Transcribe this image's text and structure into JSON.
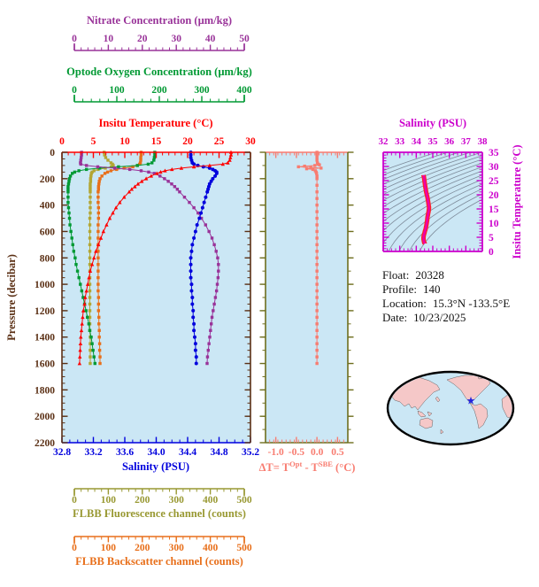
{
  "figure": {
    "background": "#ffffff",
    "info": {
      "rows": [
        {
          "label": "Float:",
          "value": "20328"
        },
        {
          "label": "Profile:",
          "value": "140"
        },
        {
          "label": "Location:",
          "value": "15.3°N  -133.5°E"
        },
        {
          "label": "Date:",
          "value": "10/23/2025"
        }
      ]
    }
  },
  "chart_data": {
    "type": "line",
    "description": "Profiling float data: six profiles vs pressure, optode-vs-SBE temperature difference panel, T-S diagram with density contours, float info and world map",
    "plot_bg": "#cbe7f5",
    "pressure_axis": {
      "title": "Pressure (decibar)",
      "lim": [
        0,
        2200
      ],
      "tick_vals": [
        0,
        200,
        400,
        600,
        800,
        1000,
        1200,
        1400,
        1600,
        1800,
        2000,
        2200
      ],
      "tick_labels": [
        "0",
        "200",
        "400",
        "600",
        "800",
        "1000",
        "1200",
        "1400",
        "1600",
        "1800",
        "2000",
        "2200"
      ],
      "minor": 50,
      "color": "#5b3015"
    },
    "axes": {
      "nitrate": {
        "title": "Nitrate Concentration (µm/kg)",
        "lim": [
          0,
          50
        ],
        "tick_vals": [
          0,
          10,
          20,
          30,
          40,
          50
        ],
        "tick_labels": [
          "0",
          "10",
          "20",
          "30",
          "40",
          "50"
        ],
        "minor": 2,
        "color": "#993399"
      },
      "oxygen": {
        "title": "Optode Oxygen Concentration (µm/kg)",
        "lim": [
          0,
          400
        ],
        "tick_vals": [
          0,
          100,
          200,
          300,
          400
        ],
        "tick_labels": [
          "0",
          "100",
          "200",
          "300",
          "400"
        ],
        "minor": 20,
        "color": "#009933"
      },
      "temperature": {
        "title": "Insitu Temperature (°C)",
        "lim": [
          0,
          30
        ],
        "tick_vals": [
          0,
          5,
          10,
          15,
          20,
          25,
          30
        ],
        "tick_labels": [
          "0",
          "5",
          "10",
          "15",
          "20",
          "25",
          "30"
        ],
        "minor": 1,
        "color": "#ff0000"
      },
      "salinity": {
        "title": "Salinity (PSU)",
        "lim": [
          32.8,
          35.2
        ],
        "tick_vals": [
          32.8,
          33.2,
          33.6,
          34.0,
          34.4,
          34.8,
          35.2
        ],
        "tick_labels": [
          "32.8",
          "33.2",
          "33.6",
          "34.0",
          "34.4",
          "34.8",
          "35.2"
        ],
        "minor": 0.1,
        "color": "#0000dd"
      },
      "fluorescence": {
        "title": "FLBB Fluorescence channel (counts)",
        "lim": [
          0,
          500
        ],
        "tick_vals": [
          0,
          100,
          200,
          300,
          400,
          500
        ],
        "tick_labels": [
          "0",
          "100",
          "200",
          "300",
          "400",
          "500"
        ],
        "minor": 20,
        "color": "#999933"
      },
      "backscatter": {
        "title": "FLBB Backscatter channel (counts)",
        "lim": [
          0,
          500
        ],
        "tick_vals": [
          0,
          100,
          200,
          300,
          400,
          500
        ],
        "tick_labels": [
          "0",
          "100",
          "200",
          "300",
          "400",
          "500"
        ],
        "minor": 20,
        "color": "#e86f1a"
      }
    },
    "series": {
      "temperature": {
        "units": "°C",
        "color": "#ff0000",
        "marker": "triangle",
        "p": [
          0,
          20,
          40,
          60,
          80,
          90,
          100,
          110,
          120,
          130,
          140,
          150,
          160,
          180,
          200,
          220,
          240,
          260,
          280,
          300,
          340,
          380,
          420,
          460,
          500,
          550,
          600,
          650,
          700,
          750,
          800,
          850,
          900,
          950,
          1000,
          1050,
          1100,
          1150,
          1200,
          1250,
          1300,
          1350,
          1400,
          1450,
          1500,
          1550,
          1600
        ],
        "v": [
          26.9,
          26.9,
          26.8,
          26.7,
          26.4,
          25.6,
          23.5,
          21.0,
          19.0,
          17.5,
          16.4,
          15.7,
          15.1,
          14.2,
          13.4,
          12.7,
          12.1,
          11.6,
          11.1,
          10.7,
          9.9,
          9.2,
          8.6,
          8.1,
          7.6,
          7.1,
          6.6,
          6.2,
          5.8,
          5.4,
          5.1,
          4.8,
          4.5,
          4.3,
          4.1,
          3.9,
          3.7,
          3.6,
          3.4,
          3.3,
          3.2,
          3.1,
          3.0,
          2.95,
          2.9,
          2.85,
          2.8
        ]
      },
      "salinity": {
        "units": "PSU",
        "color": "#0000dd",
        "marker": "circle",
        "p": [
          0,
          20,
          40,
          60,
          80,
          90,
          100,
          110,
          120,
          130,
          140,
          150,
          160,
          180,
          200,
          220,
          240,
          260,
          280,
          300,
          340,
          380,
          420,
          460,
          500,
          550,
          600,
          650,
          700,
          750,
          800,
          850,
          900,
          950,
          1000,
          1050,
          1100,
          1150,
          1200,
          1250,
          1300,
          1350,
          1400,
          1450,
          1500,
          1550,
          1600
        ],
        "v": [
          34.44,
          34.44,
          34.44,
          34.45,
          34.46,
          34.48,
          34.53,
          34.6,
          34.68,
          34.72,
          34.75,
          34.77,
          34.77,
          34.75,
          34.72,
          34.7,
          34.68,
          34.67,
          34.66,
          34.65,
          34.63,
          34.61,
          34.59,
          34.57,
          34.55,
          34.52,
          34.5,
          34.48,
          34.46,
          34.45,
          34.44,
          34.44,
          34.44,
          34.44,
          34.45,
          34.45,
          34.46,
          34.46,
          34.47,
          34.47,
          34.48,
          34.48,
          34.49,
          34.5,
          34.5,
          34.51,
          34.51
        ]
      },
      "nitrate": {
        "units": "µm/kg",
        "color": "#993399",
        "marker": "square",
        "p": [
          0,
          20,
          40,
          60,
          80,
          90,
          100,
          110,
          120,
          130,
          140,
          150,
          160,
          180,
          200,
          220,
          240,
          260,
          280,
          300,
          340,
          380,
          420,
          460,
          500,
          550,
          600,
          650,
          700,
          750,
          800,
          850,
          900,
          950,
          1000,
          1050,
          1100,
          1150,
          1200,
          1250,
          1300,
          1350,
          1400,
          1450,
          1500,
          1550,
          1600
        ],
        "v": [
          5.2,
          5.2,
          5.1,
          5.0,
          4.9,
          5.0,
          6.5,
          9.5,
          14.0,
          18.0,
          21.0,
          23.0,
          24.5,
          26.0,
          27.2,
          28.2,
          29.1,
          29.9,
          30.6,
          31.2,
          32.5,
          33.8,
          35.0,
          36.1,
          37.0,
          38.1,
          39.0,
          39.8,
          40.4,
          40.9,
          41.3,
          41.5,
          41.5,
          41.4,
          41.2,
          41.0,
          40.7,
          40.4,
          40.1,
          39.8,
          39.6,
          39.4,
          39.2,
          39.0,
          38.8,
          38.6,
          38.5
        ]
      },
      "oxygen": {
        "units": "µm/kg",
        "color": "#009933",
        "marker": "square",
        "p": [
          0,
          20,
          40,
          60,
          80,
          90,
          100,
          110,
          120,
          130,
          140,
          150,
          160,
          180,
          200,
          220,
          240,
          260,
          280,
          300,
          340,
          380,
          420,
          460,
          500,
          550,
          600,
          650,
          700,
          750,
          800,
          850,
          900,
          950,
          1000,
          1050,
          1100,
          1150,
          1200,
          1250,
          1300,
          1350,
          1400,
          1450,
          1500,
          1550,
          1600
        ],
        "v": [
          197,
          197,
          196,
          195,
          191,
          183,
          160,
          120,
          80,
          52,
          36,
          27,
          22,
          18,
          16,
          15,
          14,
          13,
          13,
          13,
          13,
          13,
          14,
          15,
          16,
          17,
          19,
          21,
          23,
          25,
          28,
          30,
          33,
          36,
          39,
          42,
          45,
          48,
          51,
          54,
          57,
          59,
          62,
          64,
          66,
          68,
          70
        ]
      },
      "fluorescence": {
        "units": "counts",
        "color": "#b3a633",
        "marker": "square",
        "p": [
          0,
          20,
          40,
          60,
          80,
          90,
          100,
          110,
          120,
          130,
          140,
          150,
          160,
          180,
          200,
          220,
          240,
          260,
          280,
          300,
          340,
          380,
          420,
          460,
          500,
          550,
          600,
          650,
          700,
          750,
          800,
          850,
          900,
          950,
          1000,
          1050,
          1100,
          1150,
          1200,
          1250,
          1300,
          1350,
          1400,
          1450,
          1500,
          1550,
          1600
        ],
        "v": [
          112,
          113,
          116,
          122,
          130,
          134,
          136,
          131,
          115,
          96,
          85,
          80,
          78,
          77,
          76,
          76,
          75,
          75,
          75,
          75,
          75,
          75,
          75,
          75,
          74,
          74,
          74,
          74,
          74,
          74,
          74,
          74,
          74,
          74,
          74,
          74,
          74,
          74,
          74,
          74,
          74,
          74,
          75,
          75,
          75,
          75,
          75
        ]
      },
      "backscatter": {
        "units": "counts",
        "color": "#e86f1a",
        "marker": "square",
        "p": [
          0,
          20,
          40,
          60,
          80,
          90,
          100,
          110,
          120,
          130,
          140,
          150,
          160,
          180,
          200,
          220,
          240,
          260,
          280,
          300,
          340,
          380,
          420,
          460,
          500,
          550,
          600,
          650,
          700,
          750,
          800,
          850,
          900,
          950,
          1000,
          1050,
          1100,
          1150,
          1200,
          1250,
          1300,
          1350,
          1400,
          1450,
          1500,
          1550,
          1600
        ],
        "v": [
          210,
          210,
          209,
          209,
          208,
          206,
          200,
          188,
          165,
          145,
          130,
          121,
          114,
          106,
          101,
          99,
          98,
          97,
          97,
          96,
          96,
          96,
          97,
          97,
          97,
          96,
          96,
          96,
          96,
          96,
          96,
          96,
          96,
          96,
          96,
          96,
          97,
          97,
          97,
          98,
          98,
          99,
          99,
          100,
          100,
          101,
          101
        ]
      }
    },
    "delta_t_panel": {
      "label_parts": {
        "p1": "ΔT= T",
        "s1": "Opt",
        "p2": " - T",
        "s2": "SBE",
        "p3": " (°C)"
      },
      "xlim": [
        -1.25,
        0.75
      ],
      "tick_vals": [
        -1.0,
        -0.5,
        0.0,
        0.5
      ],
      "tick_labels": [
        "-1.0",
        "-0.5",
        "0.0",
        "0.5"
      ],
      "minor": 0.1,
      "color": "#f87c70",
      "frame_color": "#6e6e1e",
      "series": {
        "p": [
          0,
          20,
          40,
          60,
          80,
          90,
          95,
          100,
          105,
          110,
          115,
          120,
          125,
          130,
          140,
          150,
          160,
          180,
          200,
          250,
          300,
          350,
          400,
          450,
          500,
          550,
          600,
          650,
          700,
          750,
          800,
          850,
          900,
          950,
          1000,
          1050,
          1100,
          1150,
          1200,
          1250,
          1300,
          1350,
          1400,
          1450,
          1500,
          1550,
          1600
        ],
        "v": [
          0.0,
          0.0,
          0.0,
          0.0,
          0.01,
          0.03,
          0.06,
          -0.05,
          -0.3,
          -0.45,
          -0.15,
          0.1,
          -0.25,
          -0.1,
          -0.04,
          -0.02,
          -0.01,
          0.0,
          0.0,
          0.0,
          0.0,
          0.0,
          0.0,
          0.0,
          0.0,
          0.0,
          0.0,
          0.0,
          0.0,
          0.0,
          0.0,
          0.0,
          0.0,
          0.0,
          0.0,
          0.0,
          0.0,
          0.0,
          0.0,
          0.0,
          0.0,
          0.0,
          0.0,
          0.0,
          0.0,
          0.0,
          0.0
        ]
      }
    },
    "ts_panel": {
      "title": "Salinity (PSU)",
      "right_title": "Insitu Temperature (°C)",
      "slim": [
        32,
        38
      ],
      "s_tick_vals": [
        32,
        33,
        34,
        35,
        36,
        37,
        38
      ],
      "s_tick_labels": [
        "32",
        "33",
        "34",
        "35",
        "36",
        "37",
        "38"
      ],
      "s_minor": 0.25,
      "tlim": [
        0,
        35
      ],
      "t_tick_vals": [
        0,
        5,
        10,
        15,
        20,
        25,
        30,
        35
      ],
      "t_tick_labels": [
        "0",
        "5",
        "10",
        "15",
        "20",
        "25",
        "30",
        "35"
      ],
      "t_minor": 1,
      "frame_color": "#cc00cc",
      "curve_color": "#ee00aa",
      "curve_edge_color": "#ff2222",
      "contour_color": "#7d8a99",
      "sigma_levels": [
        20,
        20.5,
        21,
        21.5,
        22,
        22.5,
        23,
        23.5,
        24,
        24.5,
        25,
        25.5,
        26,
        26.5,
        27,
        27.5
      ],
      "bg": "#cbe7f5"
    },
    "map": {
      "ocean": "#cbe7f5",
      "land": "#f5c8c8",
      "outline": "#000000",
      "star_color": "#2222dd",
      "star_glyph": "★"
    }
  }
}
